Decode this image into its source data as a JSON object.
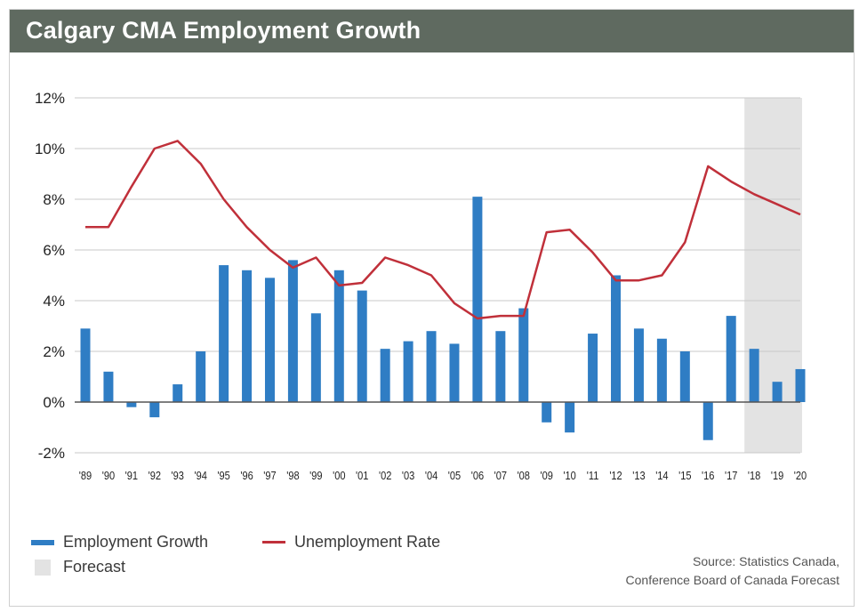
{
  "title": "Calgary CMA Employment Growth",
  "legend": {
    "employment": "Employment Growth",
    "unemployment": "Unemployment Rate",
    "forecast": "Forecast"
  },
  "source": {
    "line1": "Source: Statistics Canada,",
    "line2": "Conference Board of Canada Forecast"
  },
  "colors": {
    "bar": "#2f7dc4",
    "line": "#c0303a",
    "forecast": "#e3e3e3",
    "header": "#5f6a60"
  },
  "chart_data": {
    "type": "bar",
    "categories": [
      "'89",
      "'90",
      "'91",
      "'92",
      "'93",
      "'94",
      "'95",
      "'96",
      "'97",
      "'98",
      "'99",
      "'00",
      "'01",
      "'02",
      "'03",
      "'04",
      "'05",
      "'06",
      "'07",
      "'08",
      "'09",
      "'10",
      "'11",
      "'12",
      "'13",
      "'14",
      "'15",
      "'16",
      "'17",
      "'18",
      "'19",
      "'20"
    ],
    "series": [
      {
        "name": "Employment Growth",
        "type": "bar",
        "values": [
          2.9,
          1.2,
          -0.2,
          -0.6,
          0.7,
          2.0,
          5.4,
          5.2,
          4.9,
          5.6,
          3.5,
          5.2,
          4.4,
          2.1,
          2.4,
          2.8,
          2.3,
          8.1,
          2.8,
          3.7,
          -0.8,
          -1.2,
          2.7,
          5.0,
          2.9,
          2.5,
          2.0,
          -1.5,
          3.4,
          2.1,
          0.8,
          1.3
        ]
      },
      {
        "name": "Unemployment Rate",
        "type": "line",
        "values": [
          6.9,
          6.9,
          8.5,
          10.0,
          10.3,
          9.4,
          8.0,
          6.9,
          6.0,
          5.3,
          5.7,
          4.6,
          4.7,
          5.7,
          5.4,
          5.0,
          3.9,
          3.3,
          3.4,
          3.4,
          6.7,
          6.8,
          5.9,
          4.8,
          4.8,
          5.0,
          6.3,
          9.3,
          8.7,
          8.2,
          7.8,
          7.4
        ]
      }
    ],
    "forecast_categories": [
      "'18",
      "'19",
      "'20"
    ],
    "yticks": [
      "12%",
      "10%",
      "8%",
      "6%",
      "4%",
      "2%",
      "0%",
      "-2%"
    ],
    "ylim": [
      -2,
      12
    ],
    "grid": true,
    "legend": "bottom-left"
  }
}
